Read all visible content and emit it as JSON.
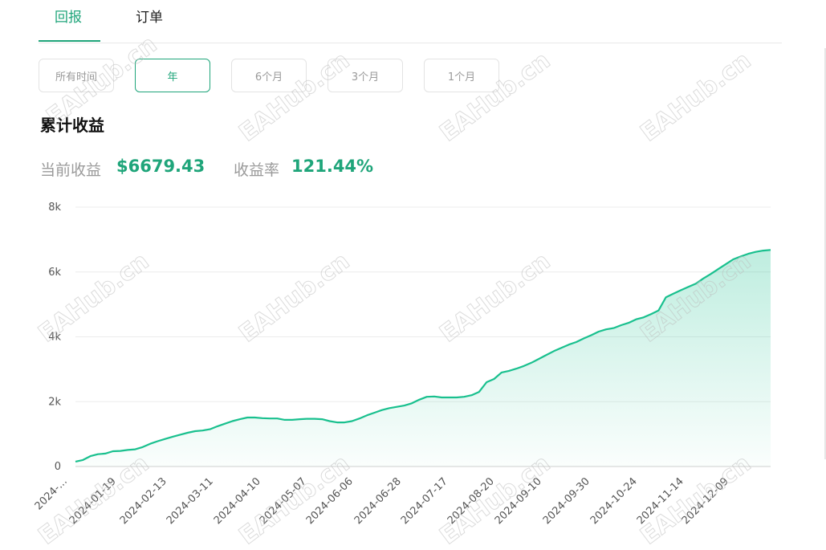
{
  "tabs": [
    {
      "label": "回报",
      "active": true
    },
    {
      "label": "订单",
      "active": false
    }
  ],
  "range_buttons": [
    {
      "label": "所有时间",
      "active": false
    },
    {
      "label": "年",
      "active": true
    },
    {
      "label": "6个月",
      "active": false
    },
    {
      "label": "3个月",
      "active": false
    },
    {
      "label": "1个月",
      "active": false
    }
  ],
  "section_title": "累计收益",
  "stats": {
    "current_profit_label": "当前收益",
    "current_profit_value": "$6679.43",
    "return_rate_label": "收益率",
    "return_rate_value": "121.44%"
  },
  "watermark": "EAHub.cn",
  "colors": {
    "accent": "#1fa57a",
    "line": "#19c08e"
  },
  "chart_data": {
    "type": "area",
    "title": "",
    "xlabel": "",
    "ylabel": "",
    "ylim": [
      0,
      8000
    ],
    "y_ticks": [
      "0",
      "2k",
      "4k",
      "6k",
      "8k"
    ],
    "x_tick_labels": [
      "2024-...",
      "2024-01-19",
      "2024-02-13",
      "2024-03-11",
      "2024-04-10",
      "2024-05-07",
      "2024-06-06",
      "2024-06-28",
      "2024-07-17",
      "2024-08-20",
      "2024-09-10",
      "2024-09-30",
      "2024-10-24",
      "2024-11-14",
      "2024-12-09"
    ],
    "grid": true,
    "legend": "none",
    "series": [
      {
        "values": [
          150,
          200,
          320,
          380,
          400,
          470,
          480,
          510,
          530,
          600,
          700,
          780,
          850,
          920,
          980,
          1040,
          1090,
          1110,
          1150,
          1240,
          1320,
          1400,
          1460,
          1510,
          1510,
          1490,
          1480,
          1480,
          1440,
          1440,
          1460,
          1470,
          1470,
          1460,
          1400,
          1360,
          1360,
          1400,
          1480,
          1580,
          1660,
          1740,
          1800,
          1840,
          1880,
          1950,
          2060,
          2150,
          2160,
          2130,
          2130,
          2130,
          2150,
          2200,
          2300,
          2600,
          2700,
          2900,
          2950,
          3020,
          3100,
          3200,
          3320,
          3440,
          3560,
          3660,
          3760,
          3840,
          3950,
          4050,
          4160,
          4230,
          4270,
          4360,
          4430,
          4540,
          4600,
          4700,
          4810,
          5220,
          5330,
          5440,
          5540,
          5640,
          5800,
          5940,
          6090,
          6240,
          6390,
          6480,
          6560,
          6620,
          6660,
          6679
        ]
      }
    ]
  }
}
